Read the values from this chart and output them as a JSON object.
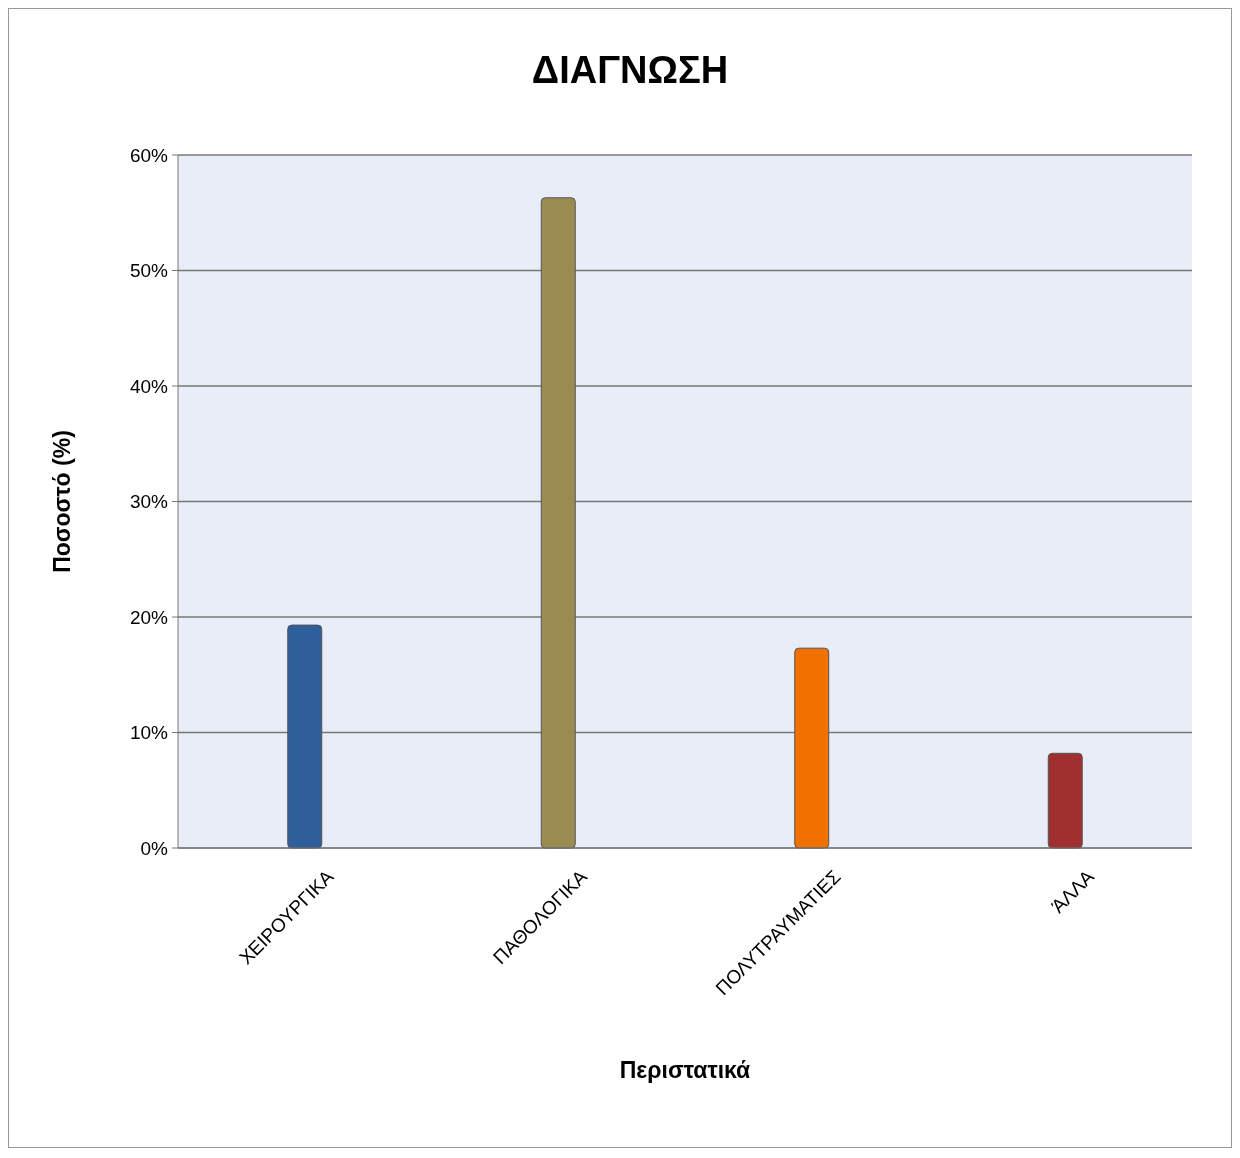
{
  "chart_data": {
    "type": "bar",
    "title": "ΔΙΑΓΝΩΣΗ",
    "xlabel": "Περιστατικά",
    "ylabel": "Ποσοστό (%)",
    "categories": [
      "ΧΕΙΡΟΥΡΓΙΚΑ",
      "ΠΑΘΟΛΟΓΙΚΑ",
      "ΠΟΛΥΤΡΑΥΜΑΤΙΕΣ",
      "ΆΛΛΑ"
    ],
    "values": [
      19.3,
      56.3,
      17.3,
      8.2
    ],
    "colors": [
      "#2e5f9a",
      "#9a8c50",
      "#f07000",
      "#a03030"
    ],
    "ylim": [
      0,
      60
    ],
    "yticks": [
      {
        "value": 0,
        "label": "0%"
      },
      {
        "value": 10,
        "label": "10%"
      },
      {
        "value": 20,
        "label": "20%"
      },
      {
        "value": 30,
        "label": "30%"
      },
      {
        "value": 40,
        "label": "40%"
      },
      {
        "value": 50,
        "label": "50%"
      },
      {
        "value": 60,
        "label": "60%"
      }
    ],
    "grid": "y"
  }
}
